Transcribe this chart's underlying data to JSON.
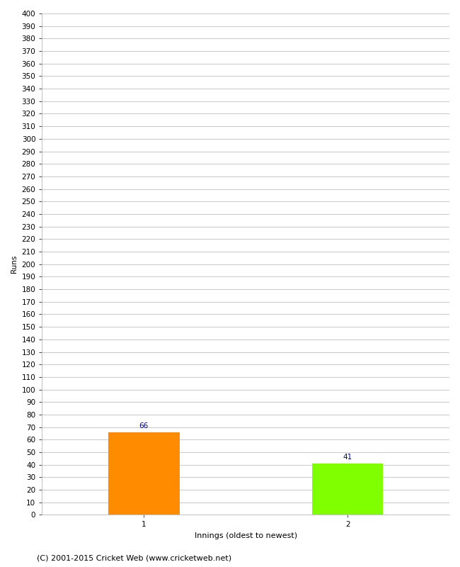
{
  "categories": [
    "1",
    "2"
  ],
  "values": [
    66,
    41
  ],
  "bar_colors": [
    "#FF8C00",
    "#7FFF00"
  ],
  "bar_width": 0.35,
  "xlabel": "Innings (oldest to newest)",
  "ylabel": "Runs",
  "ylim": [
    0,
    400
  ],
  "ytick_step": 10,
  "value_label_color": "#00008B",
  "value_label_fontsize": 7.5,
  "xlabel_fontsize": 8,
  "ylabel_fontsize": 7.5,
  "tick_fontsize": 7.5,
  "grid_color": "#cccccc",
  "background_color": "#ffffff",
  "footer": "(C) 2001-2015 Cricket Web (www.cricketweb.net)",
  "footer_fontsize": 8,
  "x_positions": [
    1,
    2
  ],
  "xlim": [
    0.5,
    2.5
  ]
}
